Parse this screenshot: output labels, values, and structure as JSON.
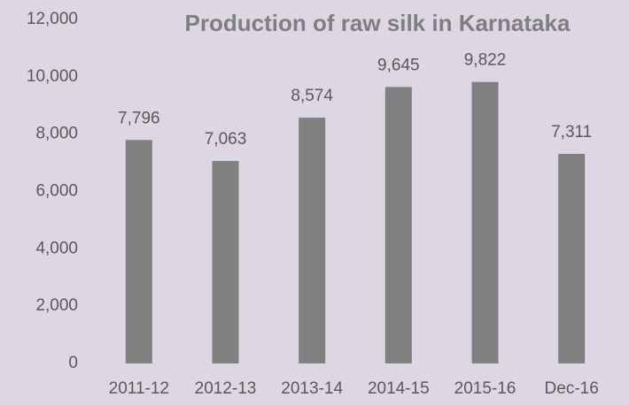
{
  "chart_data": {
    "type": "bar",
    "title": "Production of raw silk in Karnataka",
    "categories": [
      "2011-12",
      "2012-13",
      "2013-14",
      "2014-15",
      "2015-16",
      "Dec-16"
    ],
    "values": [
      7796,
      7063,
      8574,
      9645,
      9822,
      7311
    ],
    "value_labels": [
      "7,796",
      "7,063",
      "8,574",
      "9,645",
      "9,822",
      "7,311"
    ],
    "color": "#808080",
    "ylim": [
      0,
      12000
    ],
    "yticks": [
      0,
      {
        "value": 2000,
        "label": "2,000"
      },
      {
        "value": 4000,
        "label": "4,000"
      },
      {
        "value": 6000,
        "label": "6,000"
      },
      {
        "value": 8000,
        "label": "8,000"
      },
      {
        "value": 10000,
        "label": "10,000"
      },
      {
        "value": 12000,
        "label": "12,000"
      }
    ],
    "grid": false
  }
}
